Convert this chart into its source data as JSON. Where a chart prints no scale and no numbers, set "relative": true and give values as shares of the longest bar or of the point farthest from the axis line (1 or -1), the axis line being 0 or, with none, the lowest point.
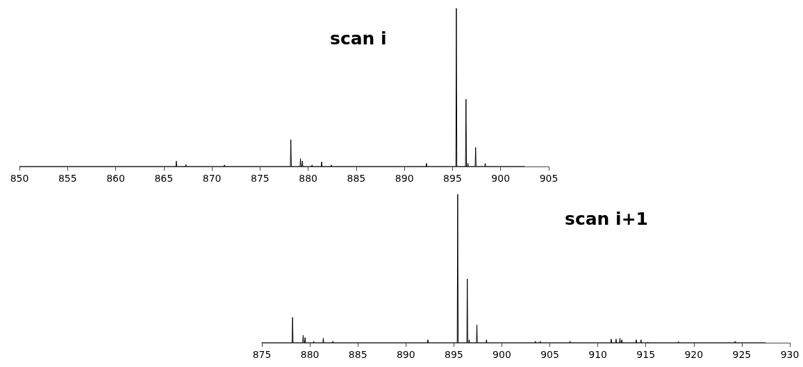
{
  "chart_data": [
    {
      "type": "line",
      "title": "scan i",
      "relative": true,
      "marker": "none",
      "xlim": [
        850,
        905
      ],
      "xticks": [
        850,
        855,
        860,
        865,
        870,
        875,
        880,
        885,
        890,
        895,
        900,
        905
      ],
      "series": [
        {
          "color": "#000000",
          "x": [
            850,
            866.25,
            866.3,
            866.35,
            867.25,
            867.3,
            867.35,
            871.25,
            871.3,
            871.35,
            878.15,
            878.2,
            878.25,
            879.15,
            879.2,
            879.25,
            879.35,
            879.4,
            879.45,
            880.35,
            880.4,
            880.45,
            881.35,
            881.4,
            881.45,
            882.35,
            882.4,
            882.45,
            892.25,
            892.3,
            892.35,
            895.35,
            895.4,
            895.45,
            896.35,
            896.4,
            896.45,
            896.55,
            896.6,
            896.65,
            897.35,
            897.4,
            897.45,
            898.35,
            898.4,
            898.45,
            902.5
          ],
          "values": [
            0,
            0,
            0.035,
            0,
            0,
            0.013,
            0,
            0,
            0.01,
            0,
            0,
            0.17,
            0,
            0,
            0.05,
            0,
            0,
            0.035,
            0,
            0,
            0.01,
            0,
            0,
            0.03,
            0,
            0,
            0.01,
            0,
            0,
            0.02,
            0,
            0,
            1,
            0,
            0,
            0.425,
            0,
            0,
            0.02,
            0,
            0,
            0.12,
            0,
            0,
            0.02,
            0,
            0
          ]
        }
      ]
    },
    {
      "type": "line",
      "title": "scan i+1",
      "relative": true,
      "marker": "none",
      "xlim": [
        875,
        930
      ],
      "xticks": [
        875,
        880,
        885,
        890,
        895,
        900,
        905,
        910,
        915,
        920,
        925,
        930
      ],
      "series": [
        {
          "color": "#000000",
          "x": [
            875,
            878.15,
            878.2,
            878.25,
            879.25,
            879.3,
            879.35,
            879.45,
            879.5,
            879.55,
            880.35,
            880.4,
            880.45,
            881.35,
            881.4,
            881.45,
            882.35,
            882.4,
            882.45,
            892.25,
            892.3,
            892.35,
            895.35,
            895.4,
            895.45,
            896.35,
            896.4,
            896.45,
            896.55,
            896.6,
            896.65,
            897.35,
            897.4,
            897.45,
            898.35,
            898.4,
            898.45,
            903.45,
            903.5,
            903.55,
            903.95,
            904,
            904.05,
            907.05,
            907.1,
            907.15,
            911.35,
            911.4,
            911.45,
            911.85,
            911.9,
            911.95,
            912.25,
            912.3,
            912.35,
            912.45,
            912.5,
            912.55,
            913.95,
            914,
            914.05,
            914.45,
            914.5,
            914.55,
            915.15,
            915.2,
            915.25,
            918.35,
            918.4,
            918.45,
            924.25,
            924.3,
            924.35,
            927.5
          ],
          "values": [
            0,
            0,
            0.17,
            0,
            0,
            0.05,
            0,
            0,
            0.035,
            0,
            0,
            0.01,
            0,
            0,
            0.03,
            0,
            0,
            0.01,
            0,
            0,
            0.02,
            0,
            0,
            1,
            0,
            0,
            0.43,
            0,
            0,
            0.02,
            0,
            0,
            0.12,
            0,
            0,
            0.02,
            0,
            0,
            0.01,
            0,
            0,
            0.01,
            0,
            0,
            0.01,
            0,
            0,
            0.025,
            0,
            0,
            0.025,
            0,
            0,
            0.03,
            0,
            0,
            0.02,
            0,
            0,
            0.02,
            0,
            0,
            0.02,
            0,
            0,
            0.005,
            0,
            0,
            0.008,
            0,
            0,
            0.01,
            0,
            0
          ]
        }
      ]
    }
  ]
}
